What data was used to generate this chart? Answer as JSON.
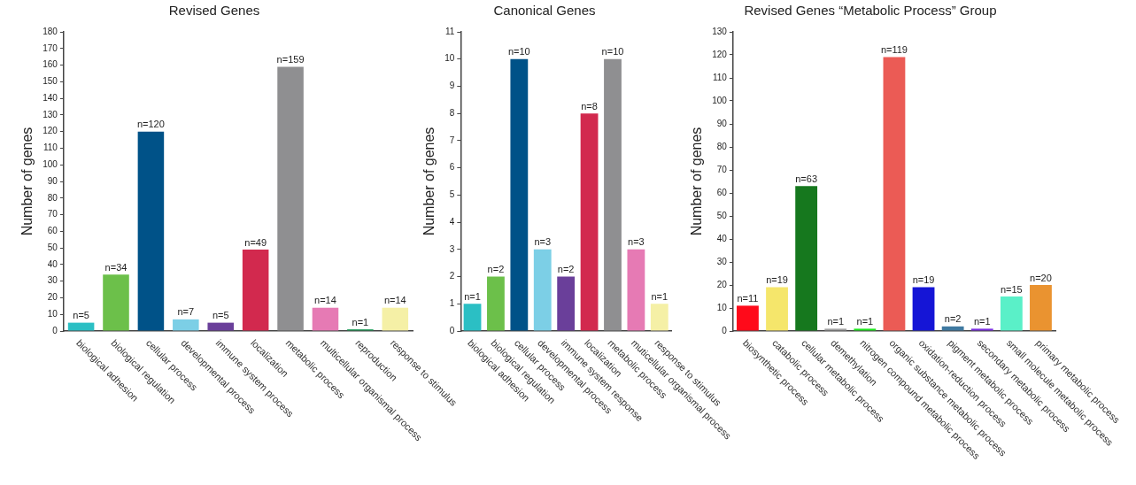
{
  "chart_data": [
    {
      "type": "bar",
      "title": "Revised Genes",
      "ylabel": "Number of genes",
      "categories": [
        "biological adhesion",
        "biological regulation",
        "cellular process",
        "developmental process",
        "immune system process",
        "localization",
        "metabolic process",
        "multicellular organismal process",
        "reproduction",
        "response to stimulus"
      ],
      "values": [
        5,
        34,
        120,
        7,
        5,
        49,
        159,
        14,
        1,
        14
      ],
      "colors": [
        "#2bbfc4",
        "#6cc04a",
        "#005288",
        "#7ccfe6",
        "#6a3f9a",
        "#d2294e",
        "#8f8f91",
        "#e67ab4",
        "#1d9a57",
        "#f5f0a6"
      ],
      "value_labels": [
        "n=5",
        "n=34",
        "n=120",
        "n=7",
        "n=5",
        "n=49",
        "n=159",
        "n=14",
        "n=1",
        "n=14"
      ],
      "ylim": [
        0,
        180
      ],
      "yticks": [
        0,
        10,
        20,
        30,
        40,
        50,
        60,
        70,
        80,
        90,
        100,
        110,
        120,
        130,
        140,
        150,
        160,
        170,
        180
      ],
      "grid": false,
      "legend": false
    },
    {
      "type": "bar",
      "title": "Canonical Genes",
      "ylabel": "Number of genes",
      "categories": [
        "biological adhesion",
        "biological regulation",
        "cellular process",
        "developmental process",
        "immune system response",
        "localization",
        "metabolic process",
        "muticellular organismal process",
        "response to stimulus"
      ],
      "values": [
        1,
        2,
        10,
        3,
        2,
        8,
        10,
        3,
        1
      ],
      "colors": [
        "#2bbfc4",
        "#6cc04a",
        "#005288",
        "#7ccfe6",
        "#6a3f9a",
        "#d2294e",
        "#8f8f91",
        "#e67ab4",
        "#f5f0a6"
      ],
      "value_labels": [
        "n=1",
        "n=2",
        "n=10",
        "n=3",
        "n=2",
        "n=8",
        "n=10",
        "n=3",
        "n=1"
      ],
      "ylim": [
        0,
        11
      ],
      "yticks": [
        0,
        1,
        2,
        3,
        4,
        5,
        6,
        7,
        8,
        9,
        10,
        11
      ],
      "grid": false,
      "legend": false
    },
    {
      "type": "bar",
      "title": "Revised Genes “Metabolic Process” Group",
      "ylabel": "Number of genes",
      "categories": [
        "biosynthetic process",
        "catabolic process",
        "cellular metabolic process",
        "demethylation",
        "nitrogen compound metabolic process",
        "organic substance metabolic process",
        "oxidation-reduction process",
        "pigment metabolic process",
        "secondary metabolic process",
        "small molecule metabolic process",
        "primary metabolic process"
      ],
      "values": [
        11,
        19,
        63,
        1,
        1,
        119,
        19,
        2,
        1,
        15,
        20
      ],
      "colors": [
        "#ff0a1a",
        "#f5e66b",
        "#16781e",
        "#a0a0a0",
        "#1ee61e",
        "#eb5b55",
        "#1515d6",
        "#3f79a0",
        "#7b2ee0",
        "#5af0c8",
        "#ea9330"
      ],
      "value_labels": [
        "n=11",
        "n=19",
        "n=63",
        "n=1",
        "n=1",
        "n=119",
        "n=19",
        "n=2",
        "n=1",
        "n=15",
        "n=20"
      ],
      "ylim": [
        0,
        130
      ],
      "yticks": [
        0,
        10,
        20,
        30,
        40,
        50,
        60,
        70,
        80,
        90,
        100,
        110,
        120,
        130
      ],
      "grid": false,
      "legend": false
    }
  ]
}
